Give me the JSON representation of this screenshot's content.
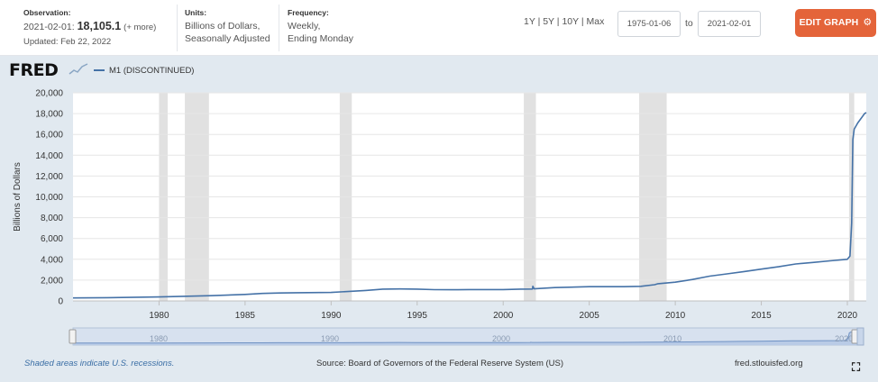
{
  "header": {
    "observation": {
      "label": "Observation:",
      "date": "2021-02-01:",
      "value": "18,105.1",
      "more": "(+ more)",
      "updated": "Updated: Feb 22, 2022"
    },
    "units": {
      "label": "Units:",
      "line1": "Billions of Dollars,",
      "line2": "Seasonally Adjusted"
    },
    "frequency": {
      "label": "Frequency:",
      "line1": "Weekly,",
      "line2": "Ending Monday"
    },
    "ranges": [
      "1Y",
      "5Y",
      "10Y",
      "Max"
    ],
    "start_date": "1975-01-06",
    "to_label": "to",
    "end_date": "2021-02-01",
    "edit_button": "EDIT GRAPH"
  },
  "logo": "FRED",
  "footer": {
    "recession_note": "Shaded areas indicate U.S. recessions.",
    "source": "Source: Board of Governors of the Federal Reserve System (US)",
    "site": "fred.stlouisfed.org"
  },
  "colors": {
    "line": "#4572a7",
    "plot_background": "#ffffff",
    "panel_background": "#e1e9f0",
    "recession": "#e1e1e1",
    "edit_button": "#e4643a"
  },
  "icons": {
    "edit": "gear-icon",
    "fullscreen": "fullscreen-icon"
  },
  "chart_data": {
    "type": "line",
    "title": "",
    "xlabel": "",
    "ylabel": "Billions of Dollars",
    "legend": "top-left",
    "grid": true,
    "xlim": [
      1975.0,
      2021.1
    ],
    "ylim": [
      0,
      20000
    ],
    "yticks": [
      0,
      2000,
      4000,
      6000,
      8000,
      10000,
      12000,
      14000,
      16000,
      18000,
      20000
    ],
    "ytick_labels": [
      "0",
      "2,000",
      "4,000",
      "6,000",
      "8,000",
      "10,000",
      "12,000",
      "14,000",
      "16,000",
      "18,000",
      "20,000"
    ],
    "xticks": [
      1980,
      1985,
      1990,
      1995,
      2000,
      2005,
      2010,
      2015,
      2020
    ],
    "xtick_labels": [
      "1980",
      "1985",
      "1990",
      "1995",
      "2000",
      "2005",
      "2010",
      "2015",
      "2020"
    ],
    "recessions": [
      [
        1980.0,
        1980.5
      ],
      [
        1981.5,
        1982.9
      ],
      [
        1990.5,
        1991.2
      ],
      [
        2001.2,
        2001.9
      ],
      [
        2007.9,
        2009.5
      ],
      [
        2020.1,
        2020.4
      ]
    ],
    "series": [
      {
        "name": "M1 (DISCONTINUED)",
        "x": [
          1975.0,
          1977,
          1980,
          1983,
          1985,
          1986,
          1987,
          1988,
          1990,
          1992,
          1993,
          1994,
          1995,
          1996,
          1997,
          1998,
          2000,
          2001,
          2001.7,
          2001.72,
          2001.8,
          2002,
          2003,
          2005,
          2007,
          2008,
          2008.8,
          2009,
          2010,
          2011,
          2012,
          2013,
          2014,
          2015,
          2016,
          2017,
          2018,
          2019,
          2020.0,
          2020.15,
          2020.25,
          2020.32,
          2020.4,
          2020.6,
          2021.0,
          2021.1
        ],
        "y": [
          285,
          315,
          385,
          500,
          620,
          720,
          760,
          785,
          815,
          1000,
          1130,
          1150,
          1130,
          1080,
          1070,
          1090,
          1090,
          1130,
          1140,
          1400,
          1160,
          1190,
          1280,
          1370,
          1370,
          1400,
          1560,
          1650,
          1800,
          2060,
          2380,
          2600,
          2820,
          3060,
          3280,
          3550,
          3700,
          3850,
          4000,
          4300,
          7500,
          15500,
          16500,
          17100,
          18000,
          18105
        ]
      }
    ]
  }
}
